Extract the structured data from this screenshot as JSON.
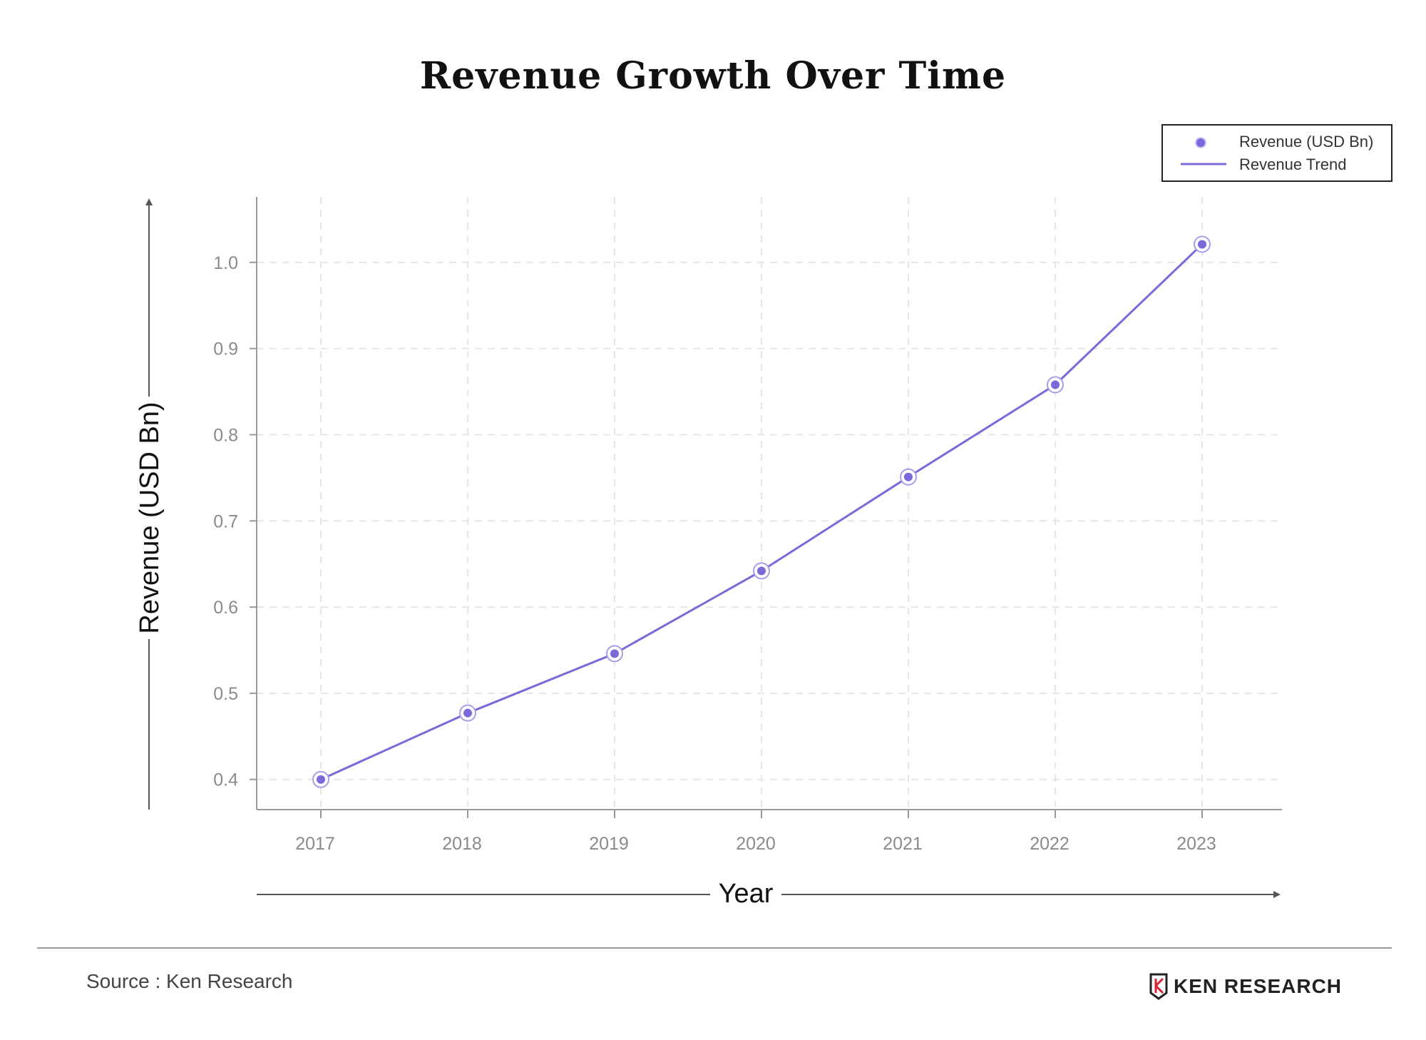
{
  "chart_data": {
    "type": "line",
    "title": "Revenue Growth Over Time",
    "xlabel": "Year",
    "ylabel": "Revenue (USD Bn)",
    "categories": [
      "2017",
      "2018",
      "2019",
      "2020",
      "2021",
      "2022",
      "2023"
    ],
    "series": [
      {
        "name": "Revenue (USD Bn)",
        "values": [
          0.4,
          0.477,
          0.546,
          0.642,
          0.751,
          0.858,
          1.021
        ],
        "style": "markers"
      },
      {
        "name": "Revenue Trend",
        "values": [
          0.4,
          0.477,
          0.546,
          0.642,
          0.751,
          0.858,
          1.021
        ],
        "style": "line"
      }
    ],
    "y_ticks": [
      "0.4",
      "0.5",
      "0.6",
      "0.7",
      "0.8",
      "0.9",
      "1.0"
    ],
    "ylim": [
      0.365,
      1.076
    ],
    "grid": true,
    "legend_position": "top-right",
    "colors": {
      "series": "#7b68d9",
      "axis": "#999999",
      "grid": "#e6e6e6"
    }
  },
  "footer": {
    "source": "Source : Ken Research",
    "brand": "KEN RESEARCH"
  }
}
